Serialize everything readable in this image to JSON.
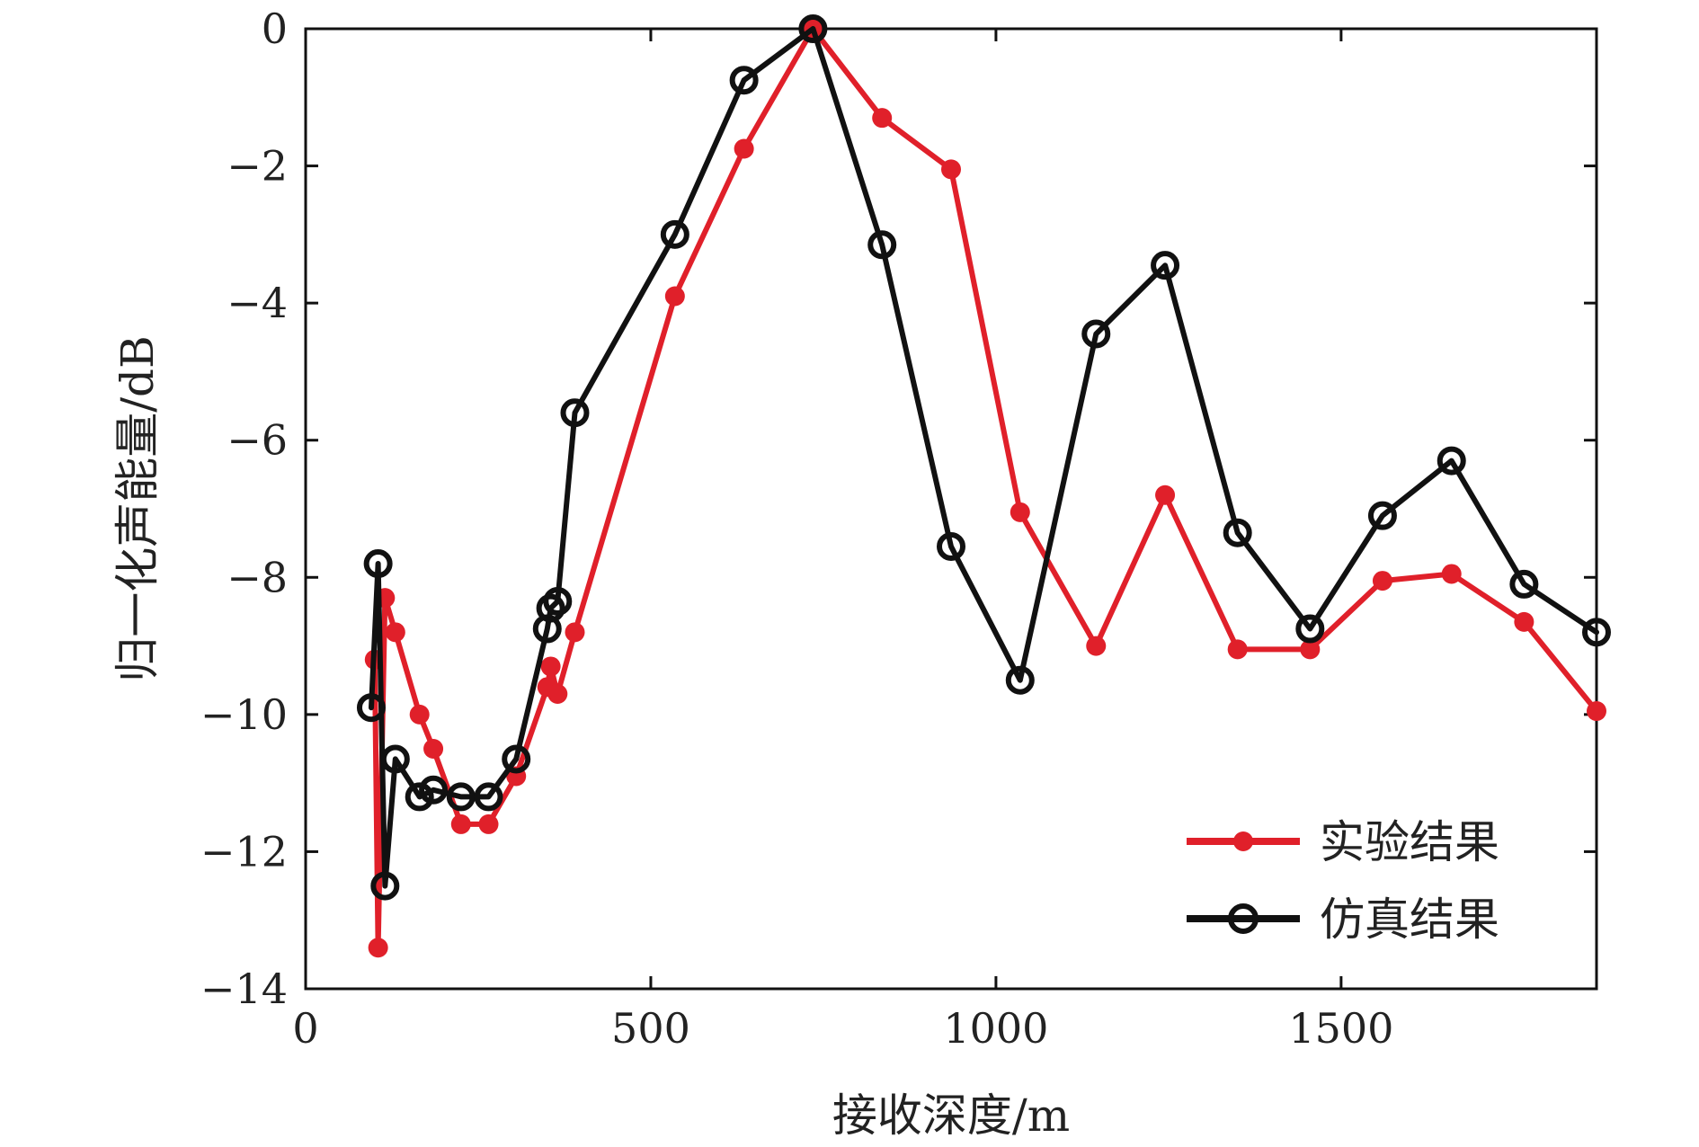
{
  "chart_data": {
    "type": "line",
    "xlabel": "接收深度/m",
    "ylabel": "归一化声能量/dB",
    "xlim": [
      0,
      1870
    ],
    "ylim": [
      -14,
      0
    ],
    "xticks": [
      0,
      500,
      1000,
      1500
    ],
    "yticks": [
      0,
      -2,
      -4,
      -6,
      -8,
      -10,
      -12,
      -14
    ],
    "xtick_labels": [
      "0",
      "500",
      "1000",
      "1500"
    ],
    "ytick_labels": [
      "0",
      "−2",
      "−4",
      "−6",
      "−8",
      "−10",
      "−12",
      "−14"
    ],
    "grid": false,
    "legend_position": "bottom-right",
    "series": [
      {
        "name": "实验结果",
        "color": "#e0202a",
        "marker": "filled-circle",
        "x": [
          100,
          105,
          115,
          130,
          165,
          185,
          225,
          265,
          305,
          350,
          355,
          365,
          390,
          535,
          635,
          735,
          835,
          935,
          1035,
          1145,
          1245,
          1350,
          1455,
          1560,
          1660,
          1765,
          1870
        ],
        "y": [
          -9.2,
          -13.4,
          -8.3,
          -8.8,
          -10.0,
          -10.5,
          -11.6,
          -11.6,
          -10.9,
          -9.6,
          -9.3,
          -9.7,
          -8.8,
          -3.9,
          -1.75,
          0.0,
          -1.3,
          -2.05,
          -7.05,
          -9.0,
          -6.8,
          -9.05,
          -9.05,
          -8.05,
          -7.95,
          -8.65,
          -9.95
        ]
      },
      {
        "name": "仿真结果",
        "color": "#111111",
        "marker": "open-circle",
        "x": [
          95,
          105,
          115,
          130,
          165,
          185,
          225,
          265,
          305,
          350,
          355,
          365,
          390,
          535,
          635,
          735,
          835,
          935,
          1035,
          1145,
          1245,
          1350,
          1455,
          1560,
          1660,
          1765,
          1870
        ],
        "y": [
          -9.9,
          -7.8,
          -12.5,
          -10.65,
          -11.2,
          -11.1,
          -11.2,
          -11.2,
          -10.65,
          -8.75,
          -8.45,
          -8.35,
          -5.6,
          -3.0,
          -0.75,
          0.0,
          -3.15,
          -7.55,
          -9.5,
          -4.45,
          -3.45,
          -7.35,
          -8.75,
          -7.1,
          -6.3,
          -8.1,
          -8.8
        ]
      }
    ]
  }
}
